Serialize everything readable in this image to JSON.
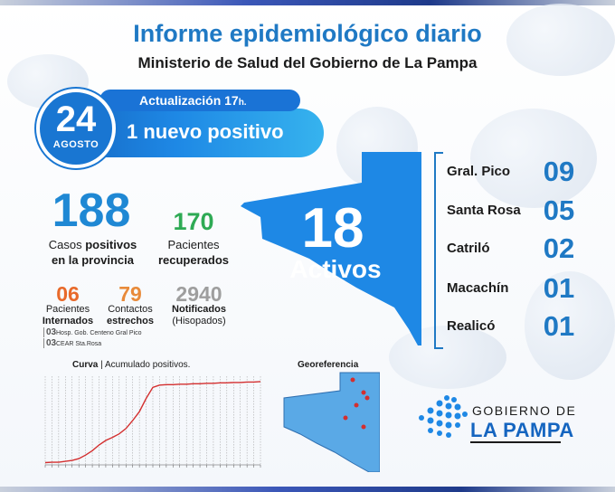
{
  "header": {
    "title": "Informe epidemiológico diario",
    "subtitle": "Ministerio de Salud del Gobierno de La Pampa"
  },
  "update": {
    "day": "24",
    "month": "AGOSTO",
    "time_label": "Actualización 17",
    "time_suffix": "h.",
    "new_positive": "1 nuevo positivo"
  },
  "stats": {
    "total_positive": "188",
    "total_positive_label_pre": "Casos ",
    "total_positive_label_bold": "positivos",
    "total_positive_label_line2": "en la provincia",
    "recovered": "170",
    "recovered_label_line1": "Pacientes",
    "recovered_label_line2": "recuperados",
    "hospitalized": "06",
    "hospitalized_label_line1": "Pacientes",
    "hospitalized_label_line2": "Internados",
    "close_contacts": "79",
    "close_contacts_label_line1": "Contactos",
    "close_contacts_label_line2": "estrechos",
    "notified": "2940",
    "notified_label_line1": "Notificados",
    "notified_label_line2": "(Hisopados)"
  },
  "hospital_detail": [
    {
      "count": "03",
      "place": "Hosp. Gob. Centeno Gral Pico"
    },
    {
      "count": "03",
      "place": "CEAR Sta.Rosa"
    }
  ],
  "active": {
    "count": "18",
    "label": "Activos"
  },
  "cities": [
    {
      "name": "Gral. Pico",
      "count": "09"
    },
    {
      "name": "Santa Rosa",
      "count": "05"
    },
    {
      "name": "Catriló",
      "count": "02"
    },
    {
      "name": "Macachín",
      "count": "01"
    },
    {
      "name": "Realicó",
      "count": "01"
    }
  ],
  "curve": {
    "title_bold": "Curva",
    "title_rest": " | Acumulado positivos."
  },
  "geo": {
    "title": "Georeferencia"
  },
  "logo": {
    "line1": "GOBIERNO DE",
    "line2": "LA PAMPA"
  },
  "colors": {
    "primary_blue": "#1f79c4",
    "map_blue": "#1e88e5",
    "green": "#2eaa54",
    "orange_red": "#e8692a",
    "orange": "#e88a3a",
    "gray": "#9e9e9e",
    "curve_red": "#d32f2f"
  },
  "chart_data": {
    "type": "line",
    "title": "Curva | Acumulado positivos.",
    "series": [
      {
        "values": [
          5,
          6,
          6,
          8,
          10,
          14,
          22,
          32,
          45,
          55,
          62,
          70,
          82,
          100,
          120,
          150,
          175,
          180,
          181,
          181,
          182,
          182,
          183,
          183,
          184,
          184,
          185,
          185,
          186,
          186,
          187,
          187,
          188
        ]
      }
    ],
    "ylim": [
      0,
      200
    ],
    "grid": true
  }
}
